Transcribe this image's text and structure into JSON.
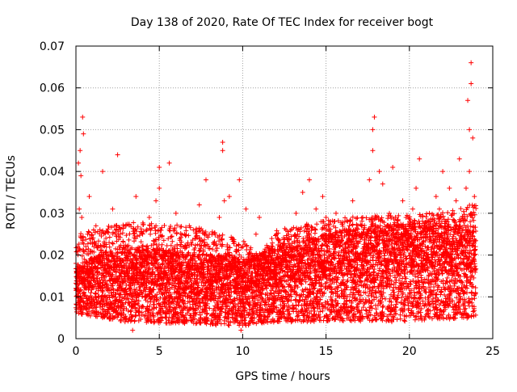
{
  "chart_data": {
    "type": "scatter",
    "title": "Day 138 of 2020, Rate Of TEC Index for receiver bogt",
    "xlabel": "GPS time / hours",
    "ylabel": "ROTI / TECUs",
    "xlim": [
      0,
      25
    ],
    "ylim": [
      0,
      0.07
    ],
    "x_ticks": [
      0,
      5,
      10,
      15,
      20,
      25
    ],
    "x_tick_labels": [
      "0",
      "5",
      "10",
      "15",
      "20",
      "25"
    ],
    "y_ticks": [
      0,
      0.01,
      0.02,
      0.03,
      0.04,
      0.05,
      0.06,
      0.07
    ],
    "y_tick_labels": [
      "0",
      "0.01",
      "0.02",
      "0.03",
      "0.04",
      "0.05",
      "0.06",
      "0.07"
    ],
    "grid": true,
    "marker": "+",
    "series": [
      {
        "color": "#ff0000",
        "x": [
          0.0,
          0.05,
          0.1,
          0.15,
          0.2,
          0.25,
          0.3,
          0.35,
          0.4,
          0.45,
          0.5,
          0.6,
          0.7,
          0.8,
          0.9,
          1.0,
          1.2,
          1.4,
          1.6,
          1.6,
          1.8,
          2.0,
          2.2,
          2.4,
          2.5,
          2.6,
          2.8,
          3.0,
          3.2,
          3.4,
          3.6,
          3.7,
          3.8,
          4.0,
          4.2,
          4.4,
          4.6,
          4.8,
          5.0,
          5.0,
          5.2,
          5.4,
          5.6,
          5.6,
          5.8,
          6.0,
          6.2,
          6.4,
          6.6,
          6.8,
          7.0,
          7.2,
          7.4,
          7.6,
          7.8,
          8.0,
          8.2,
          8.4,
          8.6,
          8.8,
          8.8,
          8.9,
          9.0,
          9.2,
          9.4,
          9.6,
          9.8,
          9.9,
          10.0,
          10.2,
          10.4,
          10.6,
          10.8,
          11.0,
          11.2,
          11.4,
          11.6,
          11.8,
          12.0,
          12.2,
          12.4,
          12.6,
          12.8,
          13.0,
          13.2,
          13.4,
          13.6,
          13.8,
          14.0,
          14.2,
          14.4,
          14.6,
          14.8,
          15.0,
          15.2,
          15.4,
          15.6,
          15.8,
          16.0,
          16.2,
          16.4,
          16.6,
          16.8,
          17.0,
          17.2,
          17.4,
          17.6,
          17.8,
          17.8,
          17.9,
          18.0,
          18.2,
          18.4,
          18.6,
          18.8,
          19.0,
          19.2,
          19.4,
          19.6,
          19.8,
          20.0,
          20.2,
          20.4,
          20.6,
          20.8,
          21.0,
          21.2,
          21.4,
          21.6,
          21.8,
          22.0,
          22.2,
          22.4,
          22.6,
          22.8,
          23.0,
          23.2,
          23.4,
          23.5,
          23.6,
          23.6,
          23.7,
          23.7,
          23.8,
          23.9
        ],
        "y": [
          0.018,
          0.012,
          0.022,
          0.042,
          0.031,
          0.045,
          0.039,
          0.029,
          0.053,
          0.049,
          0.019,
          0.012,
          0.025,
          0.034,
          0.011,
          0.015,
          0.027,
          0.018,
          0.04,
          0.006,
          0.024,
          0.014,
          0.031,
          0.009,
          0.044,
          0.022,
          0.017,
          0.027,
          0.012,
          0.002,
          0.034,
          0.021,
          0.016,
          0.025,
          0.019,
          0.029,
          0.01,
          0.033,
          0.036,
          0.041,
          0.018,
          0.021,
          0.026,
          0.042,
          0.015,
          0.03,
          0.012,
          0.02,
          0.017,
          0.027,
          0.009,
          0.014,
          0.032,
          0.018,
          0.038,
          0.025,
          0.011,
          0.021,
          0.029,
          0.045,
          0.047,
          0.033,
          0.016,
          0.034,
          0.024,
          0.012,
          0.038,
          0.002,
          0.022,
          0.031,
          0.017,
          0.011,
          0.025,
          0.029,
          0.016,
          0.008,
          0.021,
          0.012,
          0.018,
          0.014,
          0.02,
          0.026,
          0.022,
          0.015,
          0.03,
          0.019,
          0.035,
          0.027,
          0.038,
          0.021,
          0.031,
          0.014,
          0.034,
          0.029,
          0.024,
          0.016,
          0.03,
          0.022,
          0.018,
          0.026,
          0.027,
          0.033,
          0.022,
          0.019,
          0.029,
          0.025,
          0.038,
          0.045,
          0.05,
          0.053,
          0.029,
          0.04,
          0.037,
          0.022,
          0.03,
          0.041,
          0.026,
          0.018,
          0.033,
          0.029,
          0.024,
          0.031,
          0.036,
          0.043,
          0.023,
          0.019,
          0.03,
          0.025,
          0.034,
          0.031,
          0.04,
          0.028,
          0.036,
          0.022,
          0.033,
          0.043,
          0.029,
          0.036,
          0.057,
          0.05,
          0.04,
          0.061,
          0.066,
          0.048,
          0.034
        ]
      }
    ],
    "dense_band": {
      "x_start": 0.0,
      "x_end": 24.0,
      "x_step": 0.01,
      "y_floor": [
        [
          0,
          0.006
        ],
        [
          3,
          0.004
        ],
        [
          10,
          0.003
        ],
        [
          12,
          0.004
        ],
        [
          19,
          0.004
        ],
        [
          24,
          0.005
        ]
      ],
      "y_typical": [
        [
          0,
          0.012
        ],
        [
          3,
          0.013
        ],
        [
          7,
          0.012
        ],
        [
          10,
          0.011
        ],
        [
          12,
          0.013
        ],
        [
          16,
          0.015
        ],
        [
          20,
          0.016
        ],
        [
          24,
          0.016
        ]
      ],
      "y_upper": [
        [
          0,
          0.025
        ],
        [
          3,
          0.028
        ],
        [
          7,
          0.027
        ],
        [
          10,
          0.024
        ],
        [
          11,
          0.02
        ],
        [
          12,
          0.026
        ],
        [
          16,
          0.029
        ],
        [
          20,
          0.03
        ],
        [
          23,
          0.031
        ],
        [
          24,
          0.033
        ]
      ]
    }
  }
}
